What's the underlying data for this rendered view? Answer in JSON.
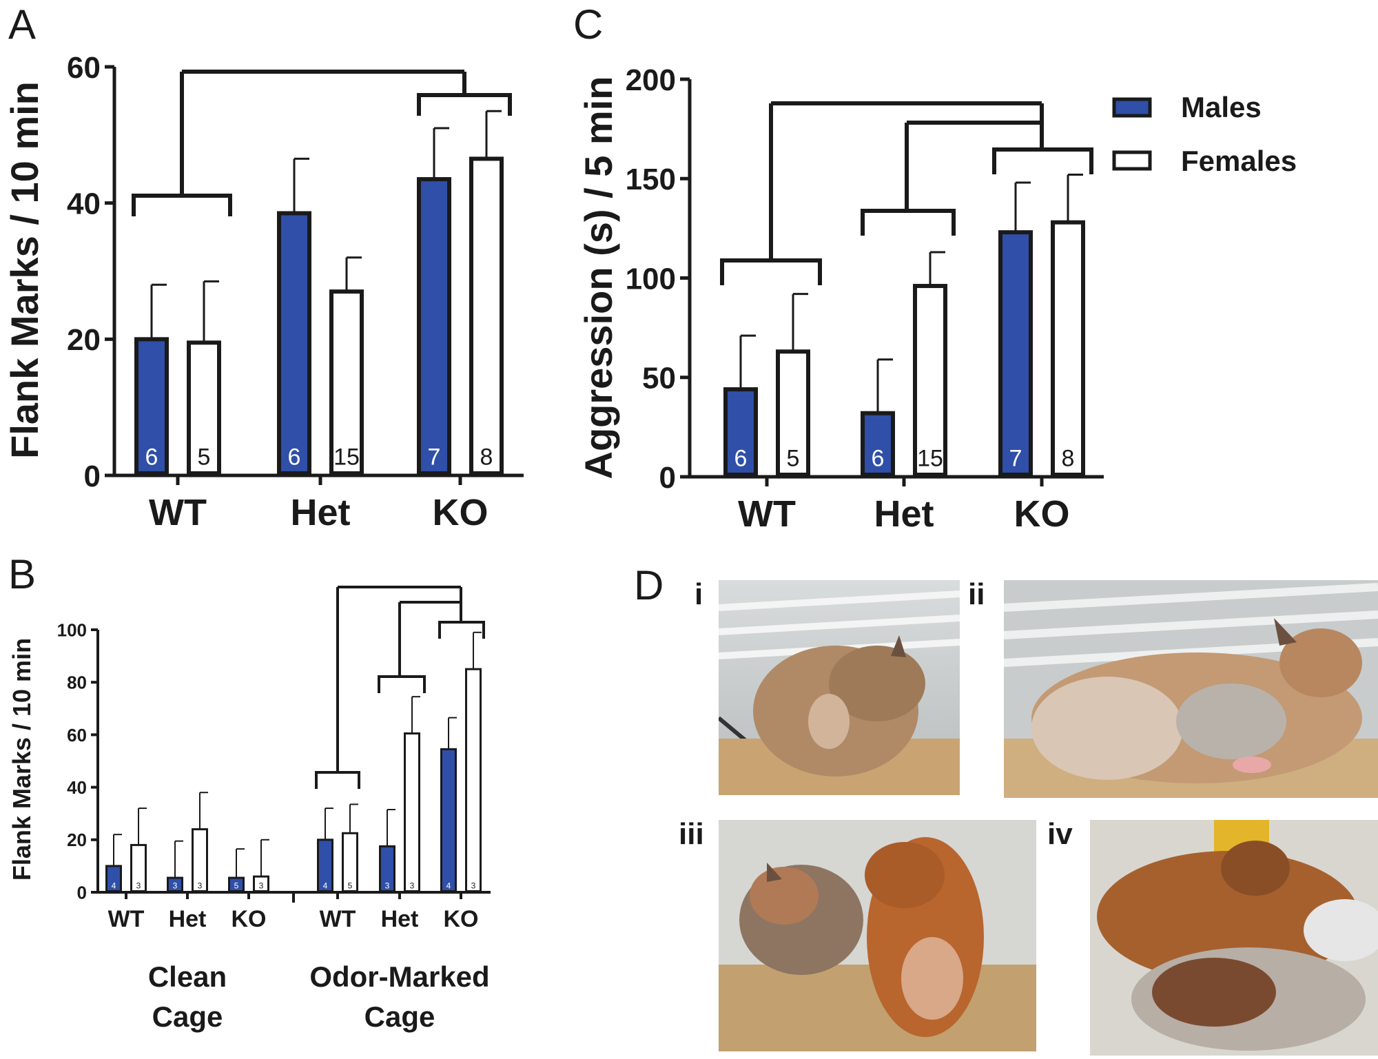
{
  "colors": {
    "male": "#2f4fa8",
    "female": "#ffffff",
    "ink": "#1a1a1a"
  },
  "legend": {
    "males": "Males",
    "females": "Females"
  },
  "panels": {
    "A": "A",
    "B": "B",
    "C": "C",
    "D": "D"
  },
  "chart_data": [
    {
      "panel": "A",
      "type": "bar",
      "ylabel": "Flank Marks / 10 min",
      "ylim": [
        0,
        60
      ],
      "yticks": [
        0,
        20,
        40,
        60
      ],
      "categories": [
        "WT",
        "Het",
        "KO"
      ],
      "series": [
        {
          "name": "Males",
          "values": [
            20,
            38.5,
            43.5
          ],
          "errors": [
            8,
            8,
            7.5
          ],
          "n": [
            "6",
            "6",
            "7"
          ]
        },
        {
          "name": "Females",
          "values": [
            19.5,
            27,
            46.5
          ],
          "errors": [
            9,
            5,
            7
          ],
          "n": [
            "5",
            "15",
            "8"
          ]
        }
      ]
    },
    {
      "panel": "B",
      "type": "bar",
      "ylabel": "Flank Marks / 10 min",
      "ylim": [
        0,
        100
      ],
      "yticks": [
        0,
        20,
        40,
        60,
        80,
        100
      ],
      "groups": [
        "Clean Cage",
        "Odor-Marked Cage"
      ],
      "group_lines": [
        [
          "Clean",
          "Cage"
        ],
        [
          "Odor-Marked",
          "Cage"
        ]
      ],
      "categories": [
        "WT",
        "Het",
        "KO",
        "WT",
        "Het",
        "KO"
      ],
      "series": [
        {
          "name": "Males",
          "values": [
            10,
            5.5,
            5.5,
            20,
            17.5,
            54.5
          ],
          "errors": [
            12,
            14,
            11,
            12,
            14,
            12
          ],
          "n": [
            "4",
            "3",
            "5",
            "4",
            "3",
            "4"
          ]
        },
        {
          "name": "Females",
          "values": [
            18,
            24,
            6,
            22.5,
            60.5,
            85
          ],
          "errors": [
            14,
            14,
            14,
            11,
            14,
            14
          ],
          "n": [
            "3",
            "3",
            "3",
            "5",
            "3",
            "3"
          ]
        }
      ]
    },
    {
      "panel": "C",
      "type": "bar",
      "ylabel": "Aggression (s)  / 5 min",
      "ylim": [
        0,
        200
      ],
      "yticks": [
        0,
        50,
        100,
        150,
        200
      ],
      "categories": [
        "WT",
        "Het",
        "KO"
      ],
      "series": [
        {
          "name": "Males",
          "values": [
            44,
            32,
            123
          ],
          "errors": [
            27,
            27,
            25
          ],
          "n": [
            "6",
            "6",
            "7"
          ]
        },
        {
          "name": "Females",
          "values": [
            63,
            96,
            128
          ],
          "errors": [
            29,
            17,
            24
          ],
          "n": [
            "5",
            "15",
            "8"
          ]
        }
      ]
    }
  ],
  "photos": [
    {
      "label": "i",
      "icon": "hamster-flank-marking-photo-icon"
    },
    {
      "label": "ii",
      "icon": "hamster-flank-marking-photo-icon"
    },
    {
      "label": "iii",
      "icon": "hamster-interaction-photo-icon"
    },
    {
      "label": "iv",
      "icon": "hamster-fight-photo-icon"
    }
  ]
}
